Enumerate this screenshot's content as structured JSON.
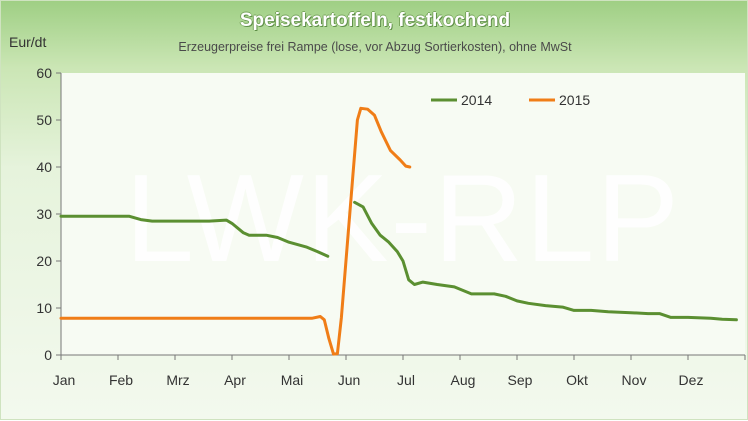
{
  "chart_data": {
    "type": "line",
    "title": "Speisekartoffeln, festkochend",
    "subtitle": "Erzeugerpreise frei Rampe (lose, vor Abzug Sortierkosten), ohne MwSt",
    "ylabel": "Eur/dt",
    "watermark": "LWK-RLP",
    "ylim": [
      0,
      60
    ],
    "yticks": [
      0,
      10,
      20,
      30,
      40,
      50,
      60
    ],
    "months": [
      "Jan",
      "Feb",
      "Mrz",
      "Apr",
      "Mai",
      "Jun",
      "Jul",
      "Aug",
      "Sep",
      "Okt",
      "Nov",
      "Dez"
    ],
    "legend_position": "top-right",
    "grid": false,
    "series": [
      {
        "name": "2014",
        "color": "#5b8f31",
        "segments": [
          [
            [
              0.0,
              29.5
            ],
            [
              0.5,
              29.5
            ],
            [
              1.0,
              29.5
            ],
            [
              1.2,
              29.5
            ],
            [
              1.4,
              28.8
            ],
            [
              1.6,
              28.5
            ],
            [
              2.0,
              28.5
            ],
            [
              2.6,
              28.5
            ],
            [
              2.9,
              28.7
            ],
            [
              3.0,
              28.0
            ],
            [
              3.2,
              26.0
            ],
            [
              3.3,
              25.5
            ],
            [
              3.6,
              25.5
            ],
            [
              3.8,
              25.0
            ],
            [
              4.0,
              24.0
            ],
            [
              4.3,
              23.0
            ],
            [
              4.5,
              22.0
            ],
            [
              4.68,
              21.0
            ]
          ],
          [
            [
              5.15,
              32.5
            ],
            [
              5.3,
              31.5
            ],
            [
              5.45,
              28.0
            ],
            [
              5.6,
              25.5
            ],
            [
              5.75,
              24.0
            ],
            [
              5.9,
              22.0
            ],
            [
              6.0,
              20.0
            ],
            [
              6.1,
              16.0
            ],
            [
              6.2,
              15.0
            ],
            [
              6.35,
              15.5
            ],
            [
              6.6,
              15.0
            ],
            [
              6.9,
              14.5
            ],
            [
              7.2,
              13.0
            ],
            [
              7.6,
              13.0
            ],
            [
              7.8,
              12.5
            ],
            [
              8.0,
              11.5
            ],
            [
              8.2,
              11.0
            ],
            [
              8.5,
              10.5
            ],
            [
              8.8,
              10.2
            ],
            [
              9.0,
              9.5
            ],
            [
              9.3,
              9.5
            ],
            [
              9.6,
              9.2
            ],
            [
              10.0,
              9.0
            ],
            [
              10.3,
              8.8
            ],
            [
              10.5,
              8.8
            ],
            [
              10.7,
              8.0
            ],
            [
              11.0,
              8.0
            ],
            [
              11.4,
              7.8
            ],
            [
              11.6,
              7.6
            ],
            [
              11.85,
              7.5
            ]
          ]
        ]
      },
      {
        "name": "2015",
        "color": "#f07d17",
        "segments": [
          [
            [
              0.0,
              7.8
            ],
            [
              0.5,
              7.8
            ],
            [
              1.0,
              7.8
            ],
            [
              2.0,
              7.8
            ],
            [
              3.0,
              7.8
            ],
            [
              4.0,
              7.8
            ],
            [
              4.4,
              7.8
            ],
            [
              4.55,
              8.2
            ],
            [
              4.62,
              7.5
            ],
            [
              4.7,
              3.5
            ],
            [
              4.78,
              0.2
            ],
            [
              4.85,
              0.3
            ],
            [
              4.92,
              8.0
            ],
            [
              5.02,
              23.0
            ],
            [
              5.12,
              38.0
            ],
            [
              5.2,
              50.0
            ],
            [
              5.26,
              52.5
            ],
            [
              5.38,
              52.3
            ],
            [
              5.5,
              51.0
            ],
            [
              5.62,
              47.5
            ],
            [
              5.78,
              43.5
            ],
            [
              5.95,
              41.5
            ],
            [
              6.05,
              40.2
            ],
            [
              6.12,
              40.0
            ]
          ]
        ]
      }
    ]
  }
}
